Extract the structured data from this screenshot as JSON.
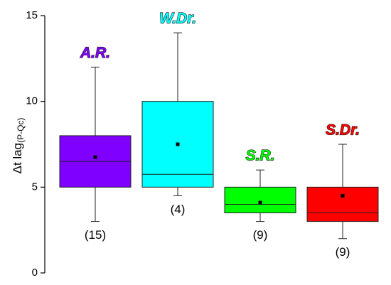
{
  "chart_data": {
    "type": "box",
    "ylabel": "Δt lag",
    "ylabel_sub": "(P-Qc)",
    "ylim": [
      0,
      15
    ],
    "yticks": [
      0,
      5,
      10,
      15
    ],
    "series": [
      {
        "name": "A.R.",
        "color": "#8000ff",
        "whislo": 3,
        "q1": 5,
        "med": 6.5,
        "q3": 8,
        "whishi": 12,
        "mean": 6.75,
        "count_label": "(15)"
      },
      {
        "name": "W.Dr.",
        "color": "#00ffff",
        "whislo": 4.5,
        "q1": 5,
        "med": 5.75,
        "q3": 10,
        "whishi": 14,
        "mean": 7.5,
        "count_label": "(4)"
      },
      {
        "name": "S.R.",
        "color": "#00ff00",
        "whislo": 3,
        "q1": 3.5,
        "med": 4,
        "q3": 5,
        "whishi": 6,
        "mean": 4.1,
        "count_label": "(9)"
      },
      {
        "name": "S.Dr.",
        "color": "#ff0000",
        "whislo": 2,
        "q1": 3,
        "med": 3.5,
        "q3": 5,
        "whishi": 7.5,
        "mean": 4.5,
        "count_label": "(9)"
      }
    ]
  }
}
